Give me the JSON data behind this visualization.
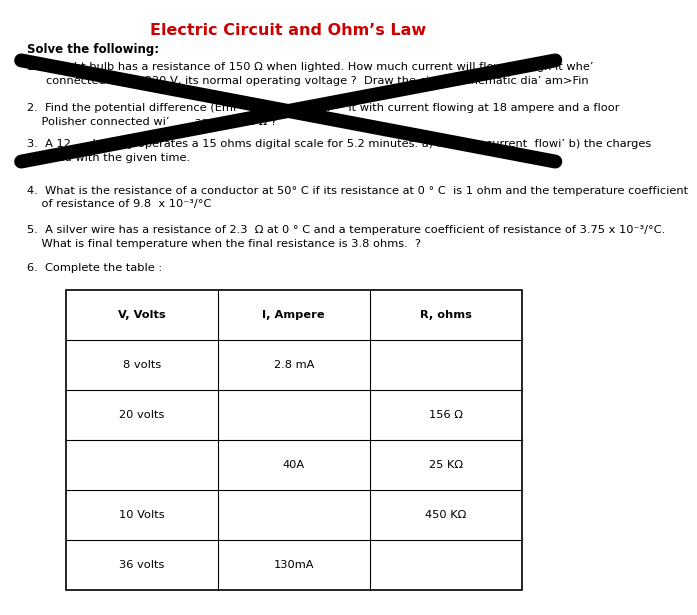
{
  "title": "Electric Circuit and Ohm’s Law",
  "title_color": "#cc0000",
  "bg_color": "#ffffff",
  "solve_label": "Solve the following:",
  "q1_num": "1.",
  "q1_line1": "in light bulb has a resistance of 150 Ω when lighted. How much current will flow through it whe’",
  "q1_line2": "connected acro’  220 V, its normal operating voltage ?  Draw the circuit schematic dia’ am>Fin",
  "q2_line1": "2.  Find the potential difference (Emf’         ain electri’    it with current flowing at 18 ampere and a floor",
  "q2_line2": "    Polisher connected wi’       ance of 12 Ω ?",
  "q3_line1": "3.  A 12      battery operates a 15 ohms digital scale for 5.2 minutes. a) Find the current  flowi’ b) the charges",
  "q3_line2": "    erred with the given time.",
  "q4_line1": "4.  What is the resistance of a conductor at 50° C if its resistance at 0 ° C  is 1 ohm and the temperature coefficient",
  "q4_line2": "    of resistance of 9.8  x 10⁻³/°C",
  "q5_line1": "5.  A silver wire has a resistance of 2.3  Ω at 0 ° C and a temperature coefficient of resistance of 3.75 x 10⁻³/°C.",
  "q5_line2": "    What is final temperature when the final resistance is 3.8 ohms.  ?",
  "q6_label": "6.  Complete the table :",
  "table_headers": [
    "V, Volts",
    "I, Ampere",
    "R, ohms"
  ],
  "table_rows": [
    [
      "8 volts",
      "2.8 mA",
      ""
    ],
    [
      "20 volts",
      "",
      "156 Ω"
    ],
    [
      "",
      "40A",
      "25 KΩ"
    ],
    [
      "10 Volts",
      "",
      "450 KΩ"
    ],
    [
      "36 volts",
      "130mA",
      ""
    ]
  ],
  "font_size": 8.2,
  "title_font_size": 11.5,
  "cross_lw": 10
}
